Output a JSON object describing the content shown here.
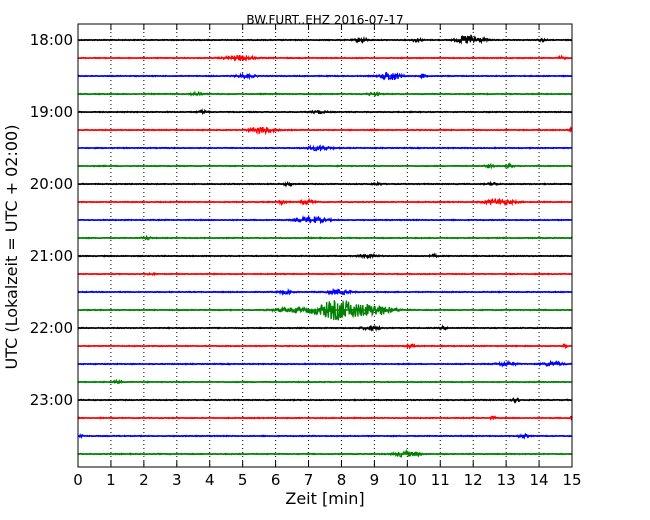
{
  "chart_data": {
    "type": "line",
    "title": "BW.FURT..EHZ 2016-07-17",
    "xlabel": "Zeit  [min]",
    "ylabel": "UTC (Lokalzeit = UTC + 02:00)",
    "xlim": [
      0,
      15
    ],
    "x_ticks": [
      0,
      1,
      2,
      3,
      4,
      5,
      6,
      7,
      8,
      9,
      10,
      11,
      12,
      13,
      14,
      15
    ],
    "y_tick_labels": [
      "18:00",
      "19:00",
      "20:00",
      "21:00",
      "22:00",
      "23:00"
    ],
    "grid": "vertical dotted",
    "trace_colors": [
      "#000000",
      "#ff0000",
      "#0000ff",
      "#008000"
    ],
    "traces": [
      {
        "start": "18:00",
        "bursts": [
          {
            "t": 8.6,
            "amp": 0.5,
            "w": 0.12
          },
          {
            "t": 10.3,
            "amp": 0.4,
            "w": 0.1
          },
          {
            "t": 11.9,
            "amp": 1.0,
            "w": 0.25
          },
          {
            "t": 14.1,
            "amp": 0.3,
            "w": 0.08
          }
        ]
      },
      {
        "start": "18:15",
        "bursts": [
          {
            "t": 4.9,
            "amp": 0.5,
            "w": 0.3
          },
          {
            "t": 14.7,
            "amp": 0.3,
            "w": 0.08
          }
        ]
      },
      {
        "start": "18:30",
        "bursts": [
          {
            "t": 5.1,
            "amp": 0.35,
            "w": 0.2
          },
          {
            "t": 9.5,
            "amp": 0.9,
            "w": 0.2
          },
          {
            "t": 10.5,
            "amp": 0.35,
            "w": 0.06
          }
        ]
      },
      {
        "start": "18:45",
        "bursts": [
          {
            "t": 3.6,
            "amp": 0.35,
            "w": 0.12
          },
          {
            "t": 9.0,
            "amp": 0.3,
            "w": 0.15
          }
        ]
      },
      {
        "start": "19:00",
        "bursts": [
          {
            "t": 3.8,
            "amp": 0.3,
            "w": 0.1
          },
          {
            "t": 7.3,
            "amp": 0.3,
            "w": 0.15
          }
        ]
      },
      {
        "start": "19:15",
        "bursts": [
          {
            "t": 5.6,
            "amp": 0.65,
            "w": 0.25
          },
          {
            "t": 15.0,
            "amp": 0.5,
            "w": 0.05
          }
        ]
      },
      {
        "start": "19:30",
        "bursts": [
          {
            "t": 7.3,
            "amp": 0.45,
            "w": 0.25
          }
        ]
      },
      {
        "start": "19:45",
        "bursts": [
          {
            "t": 12.5,
            "amp": 0.3,
            "w": 0.1
          },
          {
            "t": 13.1,
            "amp": 0.35,
            "w": 0.08
          }
        ]
      },
      {
        "start": "20:00",
        "bursts": [
          {
            "t": 6.4,
            "amp": 0.3,
            "w": 0.1
          },
          {
            "t": 9.1,
            "amp": 0.25,
            "w": 0.1
          },
          {
            "t": 12.6,
            "amp": 0.3,
            "w": 0.1
          }
        ]
      },
      {
        "start": "20:15",
        "bursts": [
          {
            "t": 6.2,
            "amp": 0.55,
            "w": 0.08
          },
          {
            "t": 7.0,
            "amp": 0.4,
            "w": 0.15
          },
          {
            "t": 12.8,
            "amp": 0.55,
            "w": 0.3
          }
        ]
      },
      {
        "start": "20:30",
        "bursts": [
          {
            "t": 7.1,
            "amp": 0.65,
            "w": 0.3
          }
        ]
      },
      {
        "start": "20:45",
        "bursts": [
          {
            "t": 2.1,
            "amp": 0.25,
            "w": 0.1
          }
        ]
      },
      {
        "start": "21:00",
        "bursts": [
          {
            "t": 8.8,
            "amp": 0.35,
            "w": 0.2
          },
          {
            "t": 10.8,
            "amp": 0.25,
            "w": 0.08
          }
        ]
      },
      {
        "start": "21:15",
        "bursts": [
          {
            "t": 2.2,
            "amp": 0.2,
            "w": 0.08
          }
        ]
      },
      {
        "start": "21:30",
        "bursts": [
          {
            "t": 6.3,
            "amp": 0.3,
            "w": 0.15
          },
          {
            "t": 7.9,
            "amp": 0.45,
            "w": 0.25
          }
        ]
      },
      {
        "start": "21:45",
        "bursts": [
          {
            "t": 7.9,
            "amp": 2.0,
            "w": 0.45
          },
          {
            "t": 9.0,
            "amp": 1.0,
            "w": 0.4
          },
          {
            "t": 6.5,
            "amp": 0.4,
            "w": 0.4
          }
        ]
      },
      {
        "start": "22:00",
        "bursts": [
          {
            "t": 8.9,
            "amp": 0.4,
            "w": 0.2
          },
          {
            "t": 11.1,
            "amp": 0.25,
            "w": 0.08
          }
        ]
      },
      {
        "start": "22:15",
        "bursts": [
          {
            "t": 10.1,
            "amp": 0.3,
            "w": 0.1
          },
          {
            "t": 14.8,
            "amp": 0.25,
            "w": 0.06
          }
        ]
      },
      {
        "start": "22:30",
        "bursts": [
          {
            "t": 13.0,
            "amp": 0.4,
            "w": 0.2
          },
          {
            "t": 14.4,
            "amp": 0.45,
            "w": 0.2
          }
        ]
      },
      {
        "start": "22:45",
        "bursts": [
          {
            "t": 1.2,
            "amp": 0.2,
            "w": 0.1
          }
        ]
      },
      {
        "start": "23:00",
        "bursts": [
          {
            "t": 13.3,
            "amp": 0.3,
            "w": 0.1
          }
        ]
      },
      {
        "start": "23:15",
        "bursts": [
          {
            "t": 12.6,
            "amp": 0.3,
            "w": 0.06
          },
          {
            "t": 15.0,
            "amp": 0.45,
            "w": 0.05
          }
        ]
      },
      {
        "start": "23:30",
        "bursts": [
          {
            "t": 0.1,
            "amp": 0.35,
            "w": 0.05
          },
          {
            "t": 13.5,
            "amp": 0.4,
            "w": 0.1
          }
        ]
      },
      {
        "start": "23:45",
        "bursts": [
          {
            "t": 9.9,
            "amp": 0.55,
            "w": 0.2
          },
          {
            "t": 10.3,
            "amp": 0.3,
            "w": 0.1
          }
        ]
      }
    ]
  }
}
